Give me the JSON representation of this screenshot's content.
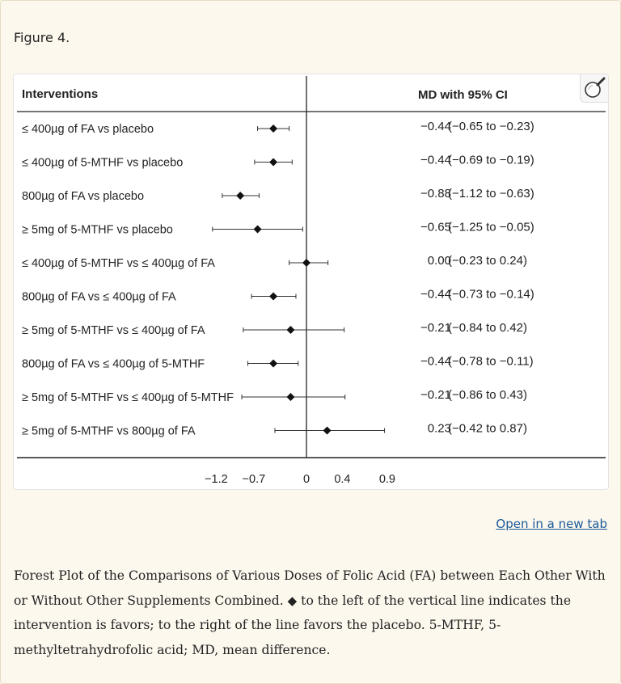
{
  "figure": {
    "label": "Figure 4."
  },
  "chart_data": {
    "type": "forest",
    "headers": {
      "interventions": "Interventions",
      "md": "MD with 95% CI"
    },
    "xlim": [
      -1.3,
      1.0
    ],
    "xticks": [
      {
        "value": -1.2,
        "label": "−1.2"
      },
      {
        "value": -0.7,
        "label": "−0.7"
      },
      {
        "value": 0,
        "label": "0"
      },
      {
        "value": 0.4,
        "label": "0.4"
      },
      {
        "value": 0.9,
        "label": "0.9"
      }
    ],
    "reference_line": 0,
    "rows": [
      {
        "label": "≤ 400µg of FA vs placebo",
        "md": -0.44,
        "lo": -0.65,
        "hi": -0.23,
        "md_text": "−0.44",
        "ci_text": "(−0.65 to −0.23)"
      },
      {
        "label": "≤ 400µg of 5-MTHF vs placebo",
        "md": -0.44,
        "lo": -0.69,
        "hi": -0.19,
        "md_text": "−0.44",
        "ci_text": "(−0.69 to −0.19)"
      },
      {
        "label": "800µg of FA vs placebo",
        "md": -0.88,
        "lo": -1.12,
        "hi": -0.63,
        "md_text": "−0.88",
        "ci_text": "(−1.12 to −0.63)"
      },
      {
        "label": "≥ 5mg of 5-MTHF vs placebo",
        "md": -0.65,
        "lo": -1.25,
        "hi": -0.05,
        "md_text": "−0.65",
        "ci_text": "(−1.25 to −0.05)"
      },
      {
        "label": "≤ 400µg of 5-MTHF vs ≤ 400µg of FA",
        "md": 0.0,
        "lo": -0.23,
        "hi": 0.24,
        "md_text": "0.00",
        "ci_text": "(−0.23 to 0.24)"
      },
      {
        "label": "800µg of FA vs ≤ 400µg of FA",
        "md": -0.44,
        "lo": -0.73,
        "hi": -0.14,
        "md_text": "−0.44",
        "ci_text": "(−0.73 to −0.14)"
      },
      {
        "label": "≥ 5mg of 5-MTHF vs ≤ 400µg of FA",
        "md": -0.21,
        "lo": -0.84,
        "hi": 0.42,
        "md_text": "−0.21",
        "ci_text": "(−0.84 to 0.42)"
      },
      {
        "label": "800µg of FA vs ≤ 400µg of 5-MTHF",
        "md": -0.44,
        "lo": -0.78,
        "hi": -0.11,
        "md_text": "−0.44",
        "ci_text": "(−0.78 to −0.11)"
      },
      {
        "label": "≥ 5mg of 5-MTHF vs ≤ 400µg of 5-MTHF",
        "md": -0.21,
        "lo": -0.86,
        "hi": 0.43,
        "md_text": "−0.21",
        "ci_text": "(−0.86 to 0.43)"
      },
      {
        "label": "≥ 5mg of 5-MTHF vs 800µg of FA",
        "md": 0.23,
        "lo": -0.42,
        "hi": 0.87,
        "md_text": "0.23",
        "ci_text": "(−0.42 to 0.87)"
      }
    ]
  },
  "link": {
    "open_new_tab": "Open in a new tab"
  },
  "caption": {
    "part1": "Forest Plot of the Comparisons of Various Doses of Folic Acid (FA) between Each Other With or Without Other Supplements Combined. ",
    "diamond": "◆",
    "part2": " to the left of the vertical line indicates the intervention is favors; to the right of the line favors the placebo. 5-MTHF, 5-methyltetrahydrofolic acid; MD, mean difference."
  }
}
